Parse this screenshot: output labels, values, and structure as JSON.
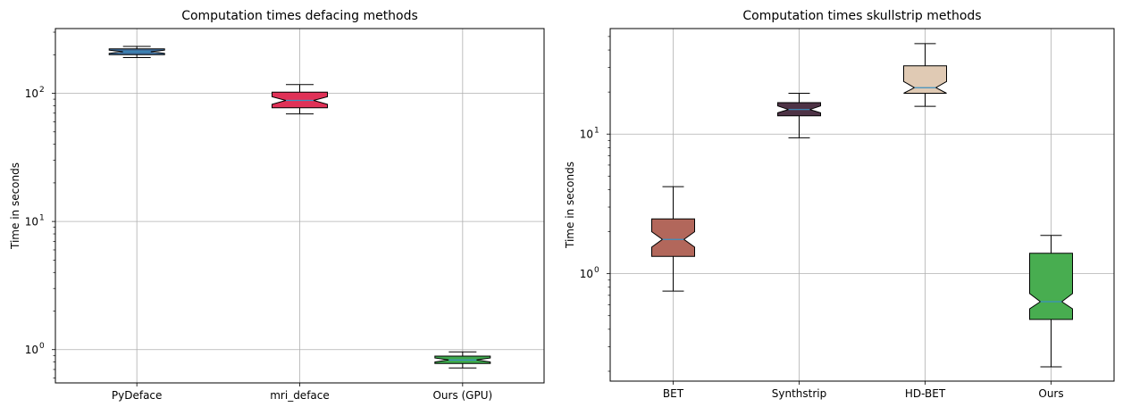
{
  "chart_data": [
    {
      "type": "boxplot",
      "title": "Computation times defacing methods",
      "ylabel": "Time in seconds",
      "yscale": "log",
      "ylim": [
        0.55,
        320
      ],
      "y_ticks": [
        {
          "value": 1,
          "base": "10",
          "exp": "0"
        },
        {
          "value": 10,
          "base": "10",
          "exp": "1"
        },
        {
          "value": 100,
          "base": "10",
          "exp": "2"
        }
      ],
      "grid": true,
      "categories": [
        "PyDeface",
        "mri_deface",
        "Ours (GPU)"
      ],
      "boxes": [
        {
          "name": "PyDeface",
          "color": "#3f6f9e",
          "whisker_low": 190,
          "q1": 200,
          "median": 211,
          "q3": 222,
          "whisker_high": 232,
          "notch_low": 205,
          "notch_high": 217
        },
        {
          "name": "mri_deface",
          "color": "#e03157",
          "whisker_low": 69,
          "q1": 77,
          "median": 88,
          "q3": 102,
          "whisker_high": 117,
          "notch_low": 82,
          "notch_high": 94
        },
        {
          "name": "Ours (GPU)",
          "color": "#3faa4e",
          "whisker_low": 0.72,
          "q1": 0.78,
          "median": 0.83,
          "q3": 0.89,
          "whisker_high": 0.96,
          "notch_low": 0.8,
          "notch_high": 0.86
        }
      ]
    },
    {
      "type": "boxplot",
      "title": "Computation times skullstrip methods",
      "ylabel": "Time in seconds",
      "yscale": "log",
      "ylim": [
        0.17,
        57
      ],
      "y_ticks": [
        {
          "value": 1,
          "base": "10",
          "exp": "0"
        },
        {
          "value": 10,
          "base": "10",
          "exp": "1"
        }
      ],
      "grid": true,
      "categories": [
        "BET",
        "Synthstrip",
        "HD-BET",
        "Ours"
      ],
      "boxes": [
        {
          "name": "BET",
          "color": "#b2675b",
          "whisker_low": 0.75,
          "q1": 1.33,
          "median": 1.76,
          "q3": 2.47,
          "whisker_high": 4.2,
          "notch_low": 1.55,
          "notch_high": 2.0
        },
        {
          "name": "Synthstrip",
          "color": "#4e3346",
          "whisker_low": 9.4,
          "q1": 13.5,
          "median": 15.0,
          "q3": 16.8,
          "whisker_high": 19.6,
          "notch_low": 14.2,
          "notch_high": 15.9
        },
        {
          "name": "HD-BET",
          "color": "#e0cab4",
          "whisker_low": 15.8,
          "q1": 19.6,
          "median": 21.5,
          "q3": 30.8,
          "whisker_high": 44.5,
          "notch_low": 19.6,
          "notch_high": 23.8
        },
        {
          "name": "Ours",
          "color": "#48ad50",
          "whisker_low": 0.215,
          "q1": 0.47,
          "median": 0.63,
          "q3": 1.4,
          "whisker_high": 1.88,
          "notch_low": 0.56,
          "notch_high": 0.72
        }
      ]
    }
  ]
}
